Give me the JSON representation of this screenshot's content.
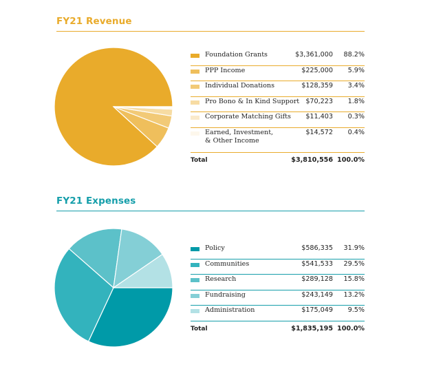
{
  "chart_data": [
    {
      "type": "pie",
      "title": "FY21 Revenue",
      "accent": "#e9ab2b",
      "categories": [
        "Foundation Grants",
        "PPP Income",
        "Individual Donations",
        "Pro Bono & In Kind Support",
        "Corporate Matching Gifts",
        "Earned, Investment, & Other Income"
      ],
      "amounts": [
        "$3,361,000",
        "$225,000",
        "$128,359",
        "$70,223",
        "$11,403",
        "$14,572"
      ],
      "percents": [
        "88.2%",
        "5.9%",
        "3.4%",
        "1.8%",
        "0.3%",
        "0.4%"
      ],
      "values": [
        3361000,
        225000,
        128359,
        70223,
        11403,
        14572
      ],
      "colors": [
        "#e9ab2b",
        "#efbf5c",
        "#f2ca77",
        "#f7dca3",
        "#faeacb",
        "#fdf7ec"
      ],
      "total_label": "Total",
      "total_amount": "$3,810,556",
      "total_percent": "100.0%"
    },
    {
      "type": "pie",
      "title": "FY21 Expenses",
      "accent": "#159eaa",
      "categories": [
        "Policy",
        "Communities",
        "Research",
        "Fundraising",
        "Administration"
      ],
      "amounts": [
        "$586,335",
        "$541,533",
        "$289,128",
        "$243,149",
        "$175,049"
      ],
      "percents": [
        "31.9%",
        "29.5%",
        "15.8%",
        "13.2%",
        "9.5%"
      ],
      "values": [
        586335,
        541533,
        289128,
        243149,
        175049
      ],
      "colors": [
        "#009aa8",
        "#33b3bd",
        "#5cc1c9",
        "#84cfd6",
        "#b3e1e5"
      ],
      "total_label": "Total",
      "total_amount": "$1,835,195",
      "total_percent": "100.0%"
    }
  ]
}
